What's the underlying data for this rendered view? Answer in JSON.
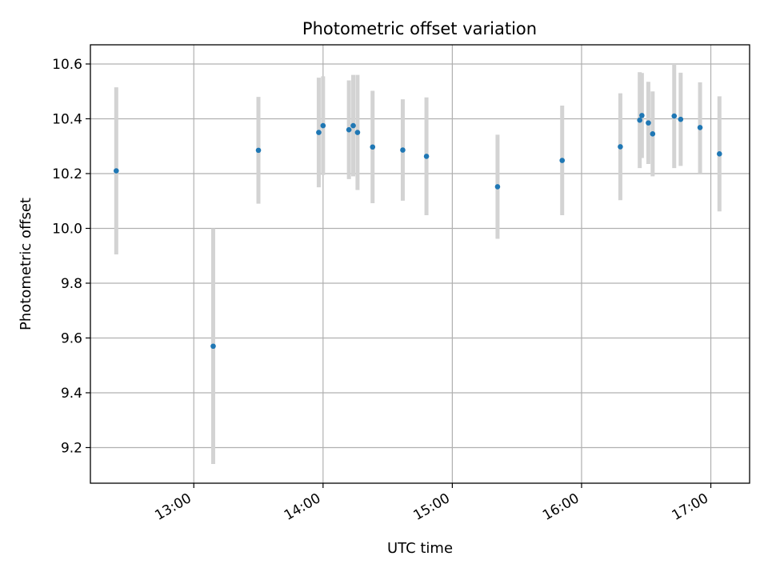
{
  "chart_data": {
    "type": "scatter",
    "title": "Photometric offset variation",
    "xlabel": "UTC time",
    "ylabel": "Photometric offset",
    "x_is_time": true,
    "xlim": [
      "12:12",
      "17:18"
    ],
    "ylim": [
      9.07,
      10.67
    ],
    "grid": true,
    "x_ticks": [
      "13:00",
      "14:00",
      "15:00",
      "16:00",
      "17:00"
    ],
    "y_ticks": [
      "9.2",
      "9.4",
      "9.6",
      "9.8",
      "10.0",
      "10.2",
      "10.4",
      "10.6"
    ],
    "colors": {
      "points": "#1f77b4",
      "errorbars": "#d3d3d3",
      "grid": "#b0b0b0"
    },
    "series": [
      {
        "marker": "point",
        "points": [
          {
            "x": "12:24",
            "y": 10.21,
            "err": 0.305
          },
          {
            "x": "13:09",
            "y": 9.57,
            "err": 0.43
          },
          {
            "x": "13:30",
            "y": 10.285,
            "err": 0.195
          },
          {
            "x": "13:58",
            "y": 10.35,
            "err": 0.2
          },
          {
            "x": "14:00",
            "y": 10.375,
            "err": 0.18
          },
          {
            "x": "14:12",
            "y": 10.36,
            "err": 0.18
          },
          {
            "x": "14:14",
            "y": 10.375,
            "err": 0.185
          },
          {
            "x": "14:16",
            "y": 10.35,
            "err": 0.21
          },
          {
            "x": "14:23",
            "y": 10.297,
            "err": 0.205
          },
          {
            "x": "14:37",
            "y": 10.286,
            "err": 0.185
          },
          {
            "x": "14:48",
            "y": 10.263,
            "err": 0.215
          },
          {
            "x": "15:21",
            "y": 10.152,
            "err": 0.19
          },
          {
            "x": "15:51",
            "y": 10.248,
            "err": 0.2
          },
          {
            "x": "16:18",
            "y": 10.298,
            "err": 0.195
          },
          {
            "x": "16:27",
            "y": 10.395,
            "err": 0.175
          },
          {
            "x": "16:28",
            "y": 10.412,
            "err": 0.155
          },
          {
            "x": "16:31",
            "y": 10.385,
            "err": 0.15
          },
          {
            "x": "16:33",
            "y": 10.345,
            "err": 0.155
          },
          {
            "x": "16:43",
            "y": 10.41,
            "err": 0.19
          },
          {
            "x": "16:46",
            "y": 10.398,
            "err": 0.17
          },
          {
            "x": "16:55",
            "y": 10.368,
            "err": 0.165
          },
          {
            "x": "17:04",
            "y": 10.272,
            "err": 0.21
          }
        ]
      }
    ]
  }
}
